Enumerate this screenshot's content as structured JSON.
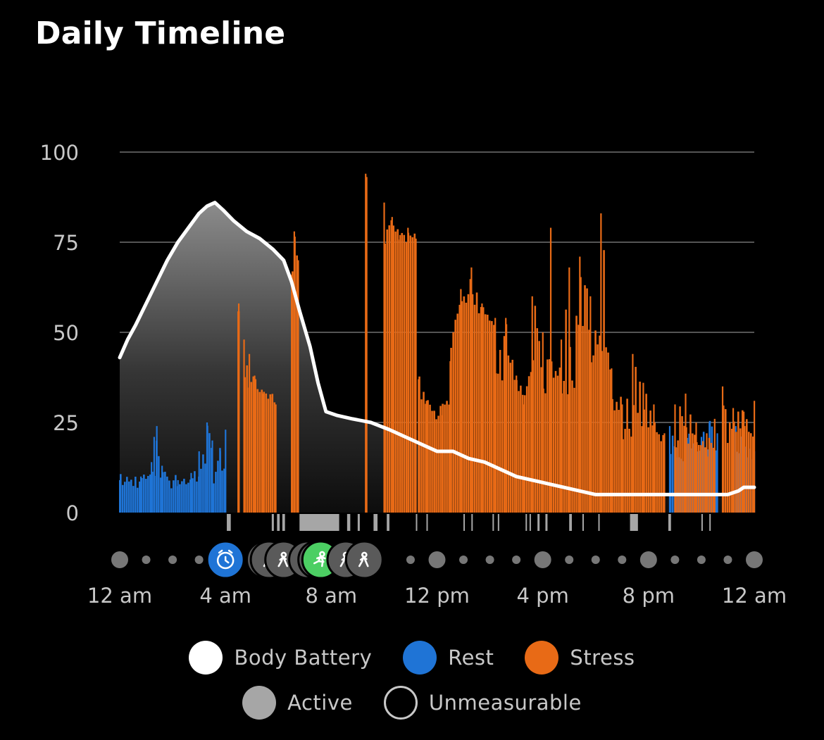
{
  "header": {
    "title": "Daily Timeline"
  },
  "colors": {
    "body_battery": "#ffffff",
    "rest": "#1f74d6",
    "stress": "#e86a16",
    "active": "#a6a6a6",
    "grid": "#555555",
    "text": "#c8c8c8",
    "activity_icon_bg": "#5a5a5a",
    "activity_run_bg": "#4ccf63",
    "sleep_icon_bg": "#1f74d6"
  },
  "chart_data": {
    "type": "area",
    "title": "Daily Timeline",
    "ylim": [
      0,
      100
    ],
    "yticks": [
      "100",
      "75",
      "50",
      "25",
      "0"
    ],
    "ytick_values": [
      100,
      75,
      50,
      25,
      0
    ],
    "x_domain_hours": [
      0,
      24
    ],
    "xticks": [
      "12 am",
      "4 am",
      "8 am",
      "12 pm",
      "4 pm",
      "8 pm",
      "12 am"
    ],
    "xtick_hours": [
      0,
      4,
      8,
      12,
      16,
      20,
      24
    ],
    "grid": true,
    "legend_placement": "bottom",
    "series": [
      {
        "name": "Body Battery",
        "type": "line",
        "points": [
          [
            0,
            43
          ],
          [
            0.3,
            48
          ],
          [
            0.6,
            52
          ],
          [
            1.0,
            58
          ],
          [
            1.4,
            64
          ],
          [
            1.8,
            70
          ],
          [
            2.2,
            75
          ],
          [
            2.6,
            79
          ],
          [
            3.0,
            83
          ],
          [
            3.3,
            85
          ],
          [
            3.6,
            86
          ],
          [
            3.9,
            84
          ],
          [
            4.3,
            81
          ],
          [
            4.8,
            78
          ],
          [
            5.3,
            76
          ],
          [
            5.8,
            73
          ],
          [
            6.2,
            70
          ],
          [
            6.5,
            64
          ],
          [
            6.8,
            56
          ],
          [
            7.2,
            46
          ],
          [
            7.5,
            36
          ],
          [
            7.8,
            28
          ],
          [
            8.2,
            27
          ],
          [
            8.8,
            26
          ],
          [
            9.5,
            25
          ],
          [
            10.2,
            23
          ],
          [
            10.8,
            21
          ],
          [
            11.4,
            19
          ],
          [
            12.0,
            17
          ],
          [
            12.6,
            17
          ],
          [
            13.2,
            15
          ],
          [
            13.8,
            14
          ],
          [
            14.4,
            12
          ],
          [
            15.0,
            10
          ],
          [
            15.6,
            9
          ],
          [
            16.2,
            8
          ],
          [
            16.8,
            7
          ],
          [
            17.4,
            6
          ],
          [
            18.0,
            5
          ],
          [
            19.0,
            5
          ],
          [
            20.0,
            5
          ],
          [
            21.0,
            5
          ],
          [
            22.0,
            5
          ],
          [
            23.0,
            5
          ],
          [
            23.4,
            6
          ],
          [
            23.6,
            7
          ],
          [
            24.0,
            7
          ]
        ]
      },
      {
        "name": "Rest",
        "type": "bar",
        "segments": [
          {
            "from": 0,
            "to": 4.0,
            "base": 8,
            "peaks": [
              [
                0,
                9
              ],
              [
                0.8,
                10
              ],
              [
                1.2,
                14
              ],
              [
                1.3,
                21
              ],
              [
                1.4,
                24
              ],
              [
                1.6,
                13
              ],
              [
                2.2,
                9
              ],
              [
                2.7,
                11
              ],
              [
                3.0,
                17
              ],
              [
                3.3,
                25
              ],
              [
                3.5,
                20
              ],
              [
                3.8,
                17
              ],
              [
                4.0,
                23
              ]
            ]
          },
          {
            "from": 20.8,
            "to": 22.6,
            "base": 14,
            "peaks": [
              [
                20.8,
                24
              ],
              [
                21.1,
                18
              ],
              [
                21.4,
                22
              ],
              [
                21.7,
                17
              ],
              [
                22.0,
                21
              ],
              [
                22.3,
                25
              ],
              [
                22.6,
                22
              ]
            ]
          },
          {
            "from": 23.3,
            "to": 24.0,
            "base": 14,
            "peaks": [
              [
                23.3,
                24
              ],
              [
                23.6,
                20
              ],
              [
                24.0,
                17
              ]
            ]
          }
        ]
      },
      {
        "name": "Stress",
        "type": "bar",
        "segments": [
          {
            "from": 4.45,
            "to": 4.55,
            "base": 50,
            "peaks": [
              [
                4.5,
                58
              ]
            ]
          },
          {
            "from": 4.7,
            "to": 5.9,
            "base": 34,
            "peaks": [
              [
                4.7,
                48
              ],
              [
                4.9,
                44
              ],
              [
                5.1,
                38
              ],
              [
                5.4,
                33
              ],
              [
                5.7,
                32
              ],
              [
                5.9,
                30
              ]
            ]
          },
          {
            "from": 6.5,
            "to": 6.75,
            "base": 68,
            "peaks": [
              [
                6.5,
                66
              ],
              [
                6.6,
                78
              ],
              [
                6.75,
                70
              ]
            ]
          },
          {
            "from": 9.3,
            "to": 9.35,
            "base": 92,
            "peaks": [
              [
                9.3,
                94
              ]
            ]
          },
          {
            "from": 10.0,
            "to": 11.2,
            "base": 75,
            "peaks": [
              [
                10.0,
                86
              ],
              [
                10.3,
                82
              ],
              [
                10.6,
                77
              ],
              [
                10.9,
                79
              ],
              [
                11.2,
                76
              ]
            ]
          },
          {
            "from": 11.3,
            "to": 12.5,
            "base": 30,
            "peaks": [
              [
                11.3,
                37
              ],
              [
                11.6,
                31
              ],
              [
                11.9,
                28
              ],
              [
                12.2,
                27
              ],
              [
                12.5,
                30
              ]
            ]
          },
          {
            "from": 12.5,
            "to": 14.2,
            "base": 55,
            "peaks": [
              [
                12.5,
                42
              ],
              [
                12.9,
                62
              ],
              [
                13.3,
                68
              ],
              [
                13.7,
                58
              ],
              [
                14.0,
                50
              ],
              [
                14.2,
                54
              ]
            ]
          },
          {
            "from": 14.2,
            "to": 15.6,
            "base": 35,
            "peaks": [
              [
                14.2,
                45
              ],
              [
                14.6,
                54
              ],
              [
                15.0,
                38
              ],
              [
                15.3,
                30
              ],
              [
                15.6,
                48
              ]
            ]
          },
          {
            "from": 15.6,
            "to": 17.0,
            "base": 30,
            "peaks": [
              [
                15.6,
                60
              ],
              [
                16.0,
                50
              ],
              [
                16.3,
                79
              ],
              [
                16.7,
                48
              ],
              [
                17.0,
                68
              ]
            ]
          },
          {
            "from": 17.0,
            "to": 18.6,
            "base": 32,
            "peaks": [
              [
                17.0,
                48
              ],
              [
                17.4,
                71
              ],
              [
                17.8,
                60
              ],
              [
                18.2,
                83
              ],
              [
                18.6,
                40
              ]
            ]
          },
          {
            "from": 18.6,
            "to": 20.6,
            "base": 20,
            "peaks": [
              [
                18.6,
                34
              ],
              [
                19.0,
                30
              ],
              [
                19.4,
                44
              ],
              [
                19.8,
                36
              ],
              [
                20.2,
                30
              ],
              [
                20.6,
                22
              ]
            ]
          },
          {
            "from": 21.0,
            "to": 22.5,
            "base": 14,
            "peaks": [
              [
                21.0,
                30
              ],
              [
                21.4,
                33
              ],
              [
                21.8,
                25
              ],
              [
                22.2,
                22
              ],
              [
                22.5,
                26
              ]
            ]
          },
          {
            "from": 22.8,
            "to": 24.0,
            "base": 15,
            "peaks": [
              [
                22.8,
                35
              ],
              [
                23.2,
                29
              ],
              [
                23.6,
                28
              ],
              [
                24.0,
                31
              ]
            ]
          }
        ]
      },
      {
        "name": "Active",
        "type": "strip",
        "intervals": [
          [
            4.05,
            4.2
          ],
          [
            5.75,
            5.8
          ],
          [
            5.95,
            6.05
          ],
          [
            6.15,
            6.25
          ],
          [
            6.8,
            8.3
          ],
          [
            8.6,
            8.72
          ],
          [
            9.0,
            9.05
          ],
          [
            9.6,
            9.75
          ],
          [
            10.1,
            10.2
          ],
          [
            15.8,
            15.85
          ],
          [
            16.1,
            16.15
          ],
          [
            17.0,
            17.1
          ],
          [
            19.3,
            19.6
          ],
          [
            20.75,
            20.85
          ]
        ]
      }
    ],
    "thin_ticks": [
      11.2,
      11.6,
      13.0,
      13.3,
      14.1,
      14.3,
      15.35,
      15.5,
      17.5,
      18.1,
      22.0,
      22.3
    ],
    "timeline_markers": [
      {
        "hour": 0,
        "kind": "dot",
        "size": "large"
      },
      {
        "hour": 1,
        "kind": "dot",
        "size": "small"
      },
      {
        "hour": 2,
        "kind": "dot",
        "size": "small"
      },
      {
        "hour": 3,
        "kind": "dot",
        "size": "small"
      },
      {
        "hour": 4,
        "kind": "icon",
        "icon": "clock-icon",
        "bg": "sleep"
      },
      {
        "hour": 5.5,
        "kind": "icon",
        "icon": "walking-icon",
        "bg": "activity"
      },
      {
        "hour": 5.65,
        "kind": "icon",
        "icon": "walking-icon",
        "bg": "activity"
      },
      {
        "hour": 6.2,
        "kind": "icon",
        "icon": "walking-icon",
        "bg": "activity"
      },
      {
        "hour": 7.1,
        "kind": "icon",
        "icon": "walking-icon",
        "bg": "activity"
      },
      {
        "hour": 7.45,
        "kind": "icon",
        "icon": "walking-icon",
        "bg": "activity"
      },
      {
        "hour": 7.6,
        "kind": "icon",
        "icon": "running-icon",
        "bg": "run"
      },
      {
        "hour": 8.55,
        "kind": "icon",
        "icon": "walking-icon",
        "bg": "activity"
      },
      {
        "hour": 9.25,
        "kind": "icon",
        "icon": "walking-icon",
        "bg": "activity"
      },
      {
        "hour": 11,
        "kind": "dot",
        "size": "small"
      },
      {
        "hour": 12,
        "kind": "dot",
        "size": "large"
      },
      {
        "hour": 13,
        "kind": "dot",
        "size": "small"
      },
      {
        "hour": 14,
        "kind": "dot",
        "size": "small"
      },
      {
        "hour": 15,
        "kind": "dot",
        "size": "small"
      },
      {
        "hour": 16,
        "kind": "dot",
        "size": "large"
      },
      {
        "hour": 17,
        "kind": "dot",
        "size": "small"
      },
      {
        "hour": 18,
        "kind": "dot",
        "size": "small"
      },
      {
        "hour": 19,
        "kind": "dot",
        "size": "small"
      },
      {
        "hour": 20,
        "kind": "dot",
        "size": "large"
      },
      {
        "hour": 21,
        "kind": "dot",
        "size": "small"
      },
      {
        "hour": 22,
        "kind": "dot",
        "size": "small"
      },
      {
        "hour": 23,
        "kind": "dot",
        "size": "small"
      },
      {
        "hour": 24,
        "kind": "dot",
        "size": "large"
      }
    ]
  },
  "legend": {
    "body_battery": "Body Battery",
    "rest": "Rest",
    "stress": "Stress",
    "active": "Active",
    "unmeasurable": "Unmeasurable"
  }
}
